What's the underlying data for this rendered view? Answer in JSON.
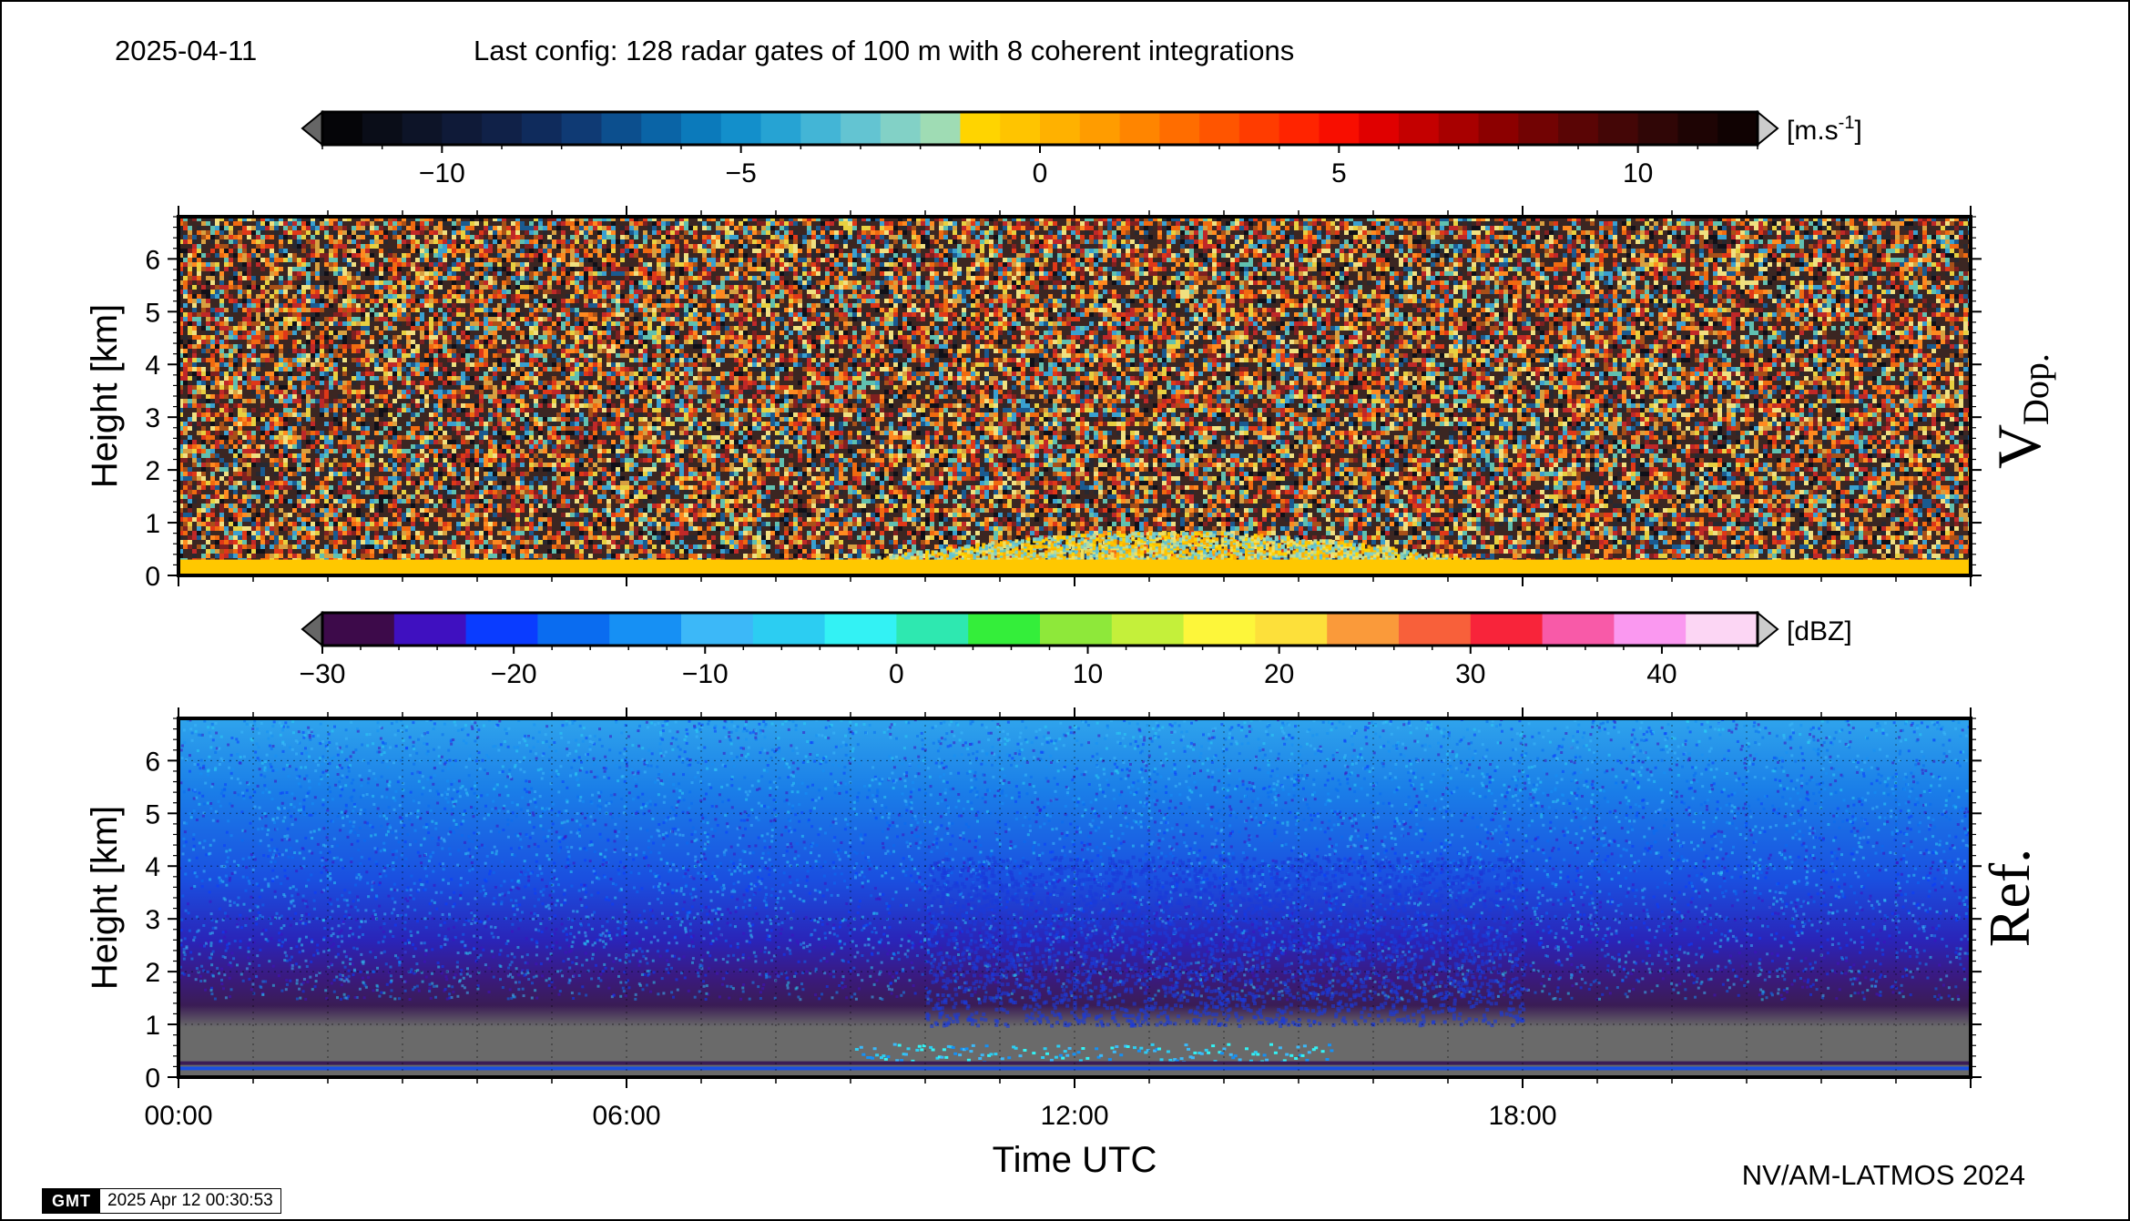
{
  "header": {
    "date": "2025-04-11",
    "config": "Last config: 128 radar gates of 100 m with 8 coherent integrations"
  },
  "footer": {
    "credit": "NV/AM-LATMOS 2024",
    "gmt_logo": "GMT",
    "timestamp": "2025 Apr 12 00:30:53"
  },
  "chart_data": [
    {
      "type": "heatmap",
      "panel_label": "V",
      "panel_label_sub": "Dop.",
      "ylabel": "Height [km]",
      "ylim": [
        0,
        6.8
      ],
      "yticks": [
        "0",
        "1",
        "2",
        "3",
        "4",
        "5",
        "6"
      ],
      "xlim": [
        0,
        24
      ],
      "grid": false,
      "colorbar": {
        "unit": "[m.s",
        "unit_sup": "-1",
        "unit_end": "]",
        "range": [
          -12,
          12
        ],
        "tick_labels": [
          "−10",
          "−5",
          "0",
          "5",
          "10"
        ],
        "tick_values": [
          -10,
          -5,
          0,
          5,
          10
        ],
        "colors": [
          "#050508",
          "#0a0d18",
          "#0d1428",
          "#0f1a38",
          "#102148",
          "#0f2b5c",
          "#0f3a74",
          "#0c4f8e",
          "#0a64a6",
          "#0b7abb",
          "#138fcb",
          "#26a3d3",
          "#43b5d6",
          "#63c4d2",
          "#82d1c6",
          "#9fdcb4",
          "#ffd400",
          "#ffc400",
          "#ffb100",
          "#ff9c00",
          "#ff8500",
          "#ff6d00",
          "#ff5500",
          "#ff3c00",
          "#ff2400",
          "#f80e00",
          "#e00000",
          "#c40000",
          "#a80000",
          "#8c0000",
          "#720303",
          "#5a0505",
          "#440606",
          "#300606",
          "#1e0404",
          "#100202"
        ]
      },
      "series_summary": "near-ground positive velocities (0-0.3 km) with a shallow layer up to ~0.8 km between 09:00 and 17:30 UTC; random noise aloft"
    },
    {
      "type": "heatmap",
      "panel_label": "Ref.",
      "ylabel": "Height [km]",
      "xlabel": "Time UTC",
      "ylim": [
        0,
        6.8
      ],
      "yticks": [
        "0",
        "1",
        "2",
        "3",
        "4",
        "5",
        "6"
      ],
      "xlim": [
        0,
        24
      ],
      "xticks": [
        "00:00",
        "06:00",
        "12:00",
        "18:00"
      ],
      "xtick_values": [
        0,
        6,
        12,
        18
      ],
      "grid": true,
      "colorbar": {
        "unit": "[dBZ]",
        "range": [
          -30,
          45
        ],
        "tick_labels": [
          "−30",
          "−20",
          "−10",
          "0",
          "10",
          "20",
          "30",
          "40"
        ],
        "tick_values": [
          -30,
          -20,
          -10,
          0,
          10,
          20,
          30,
          40
        ],
        "colors": [
          "#3d0a4a",
          "#3f10c0",
          "#0a3cff",
          "#0a6cf0",
          "#1690f4",
          "#3cb8f8",
          "#2ccdf2",
          "#33f2f4",
          "#2ee8b0",
          "#34ee3a",
          "#8ee83a",
          "#c4f03a",
          "#fdf63a",
          "#fde03a",
          "#fa9a3a",
          "#f8603a",
          "#f8243a",
          "#f85aa8",
          "#fa98f0",
          "#fcd6f4"
        ]
      },
      "series_summary": "low reflectivity (~-20 to -10 dBZ) aloft, darker purple band below 2 km, grey clutter below ~0.8 km, bright echoes near 0.3-0.6 km between 09:00 and 15:30 UTC"
    }
  ]
}
